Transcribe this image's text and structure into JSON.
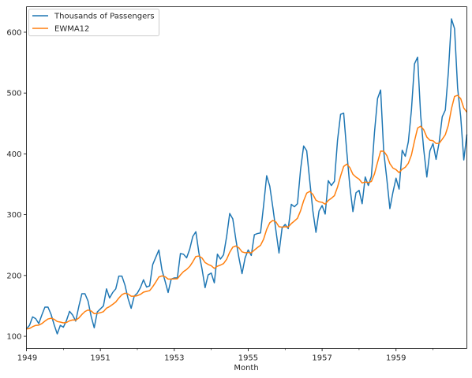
{
  "chart_data": {
    "type": "line",
    "title": "",
    "xlabel": "Month",
    "ylabel": "",
    "x_start": "1949-01",
    "x_end": "1960-12",
    "x_ticks": [
      "1949",
      "1951",
      "1953",
      "1955",
      "1957",
      "1959"
    ],
    "y_ticks": [
      100,
      200,
      300,
      400,
      500,
      600
    ],
    "ylim": [
      80,
      642
    ],
    "grid": false,
    "legend_position": "top-left",
    "series": [
      {
        "name": "Thousands of Passengers",
        "color": "#1f77b4",
        "values": [
          112,
          118,
          132,
          129,
          121,
          135,
          148,
          148,
          136,
          119,
          104,
          118,
          115,
          126,
          141,
          135,
          125,
          149,
          170,
          170,
          158,
          133,
          114,
          140,
          145,
          150,
          178,
          163,
          172,
          178,
          199,
          199,
          184,
          162,
          146,
          166,
          171,
          180,
          193,
          181,
          183,
          218,
          230,
          242,
          209,
          191,
          172,
          194,
          196,
          196,
          236,
          235,
          229,
          243,
          264,
          272,
          237,
          211,
          180,
          201,
          204,
          188,
          235,
          227,
          234,
          264,
          302,
          293,
          259,
          229,
          203,
          229,
          242,
          233,
          267,
          269,
          270,
          315,
          364,
          347,
          312,
          274,
          237,
          278,
          284,
          277,
          317,
          313,
          318,
          374,
          413,
          405,
          355,
          306,
          271,
          306,
          315,
          301,
          356,
          348,
          355,
          422,
          465,
          467,
          404,
          347,
          305,
          336,
          340,
          318,
          362,
          348,
          363,
          435,
          491,
          505,
          404,
          359,
          310,
          337,
          360,
          342,
          406,
          396,
          420,
          472,
          548,
          559,
          463,
          407,
          362,
          405,
          417,
          391,
          419,
          461,
          472,
          535,
          622,
          606,
          508,
          461,
          390,
          432
        ]
      },
      {
        "name": "EWMA12",
        "color": "#ff7f0e",
        "values": [
          112.0,
          112.9,
          115.8,
          117.9,
          118.4,
          120.9,
          125.0,
          128.5,
          129.7,
          128.0,
          124.3,
          123.4,
          122.1,
          122.7,
          125.5,
          126.9,
          126.6,
          130.0,
          135.9,
          140.7,
          143.3,
          141.7,
          137.3,
          137.7,
          138.8,
          140.5,
          146.3,
          148.9,
          152.5,
          156.4,
          162.9,
          168.4,
          170.9,
          169.6,
          166.0,
          166.0,
          166.8,
          168.9,
          172.6,
          173.9,
          175.1,
          181.6,
          189.2,
          197.5,
          199.3,
          198.1,
          194.1,
          194.1,
          194.4,
          194.6,
          200.9,
          206.4,
          209.8,
          214.8,
          222.4,
          231.2,
          232.0,
          228.8,
          221.3,
          218.2,
          216.0,
          211.7,
          215.3,
          217.1,
          219.6,
          226.6,
          238.2,
          246.6,
          248.5,
          245.5,
          238.9,
          237.4,
          238.0,
          237.2,
          241.8,
          245.9,
          249.6,
          259.7,
          275.7,
          286.7,
          290.6,
          288.1,
          280.2,
          279.5,
          280.2,
          279.7,
          285.4,
          289.6,
          294.1,
          306.4,
          322.8,
          335.4,
          338.3,
          333.3,
          323.8,
          321.2,
          320.3,
          317.3,
          323.3,
          327.0,
          331.3,
          345.3,
          363.6,
          379.3,
          383.1,
          377.5,
          366.4,
          361.8,
          358.4,
          352.2,
          353.7,
          352.7,
          354.6,
          367.1,
          386.2,
          404.5,
          404.4,
          397.4,
          383.9,
          376.7,
          374.0,
          369.2,
          374.8,
          378.0,
          384.6,
          398.1,
          421.2,
          442.4,
          445.5,
          439.6,
          427.6,
          422.3,
          421.6,
          417.0,
          417.3,
          424.0,
          431.4,
          447.3,
          474.3,
          494.5,
          496.2,
          490.8,
          475.3,
          468.6
        ]
      }
    ]
  }
}
